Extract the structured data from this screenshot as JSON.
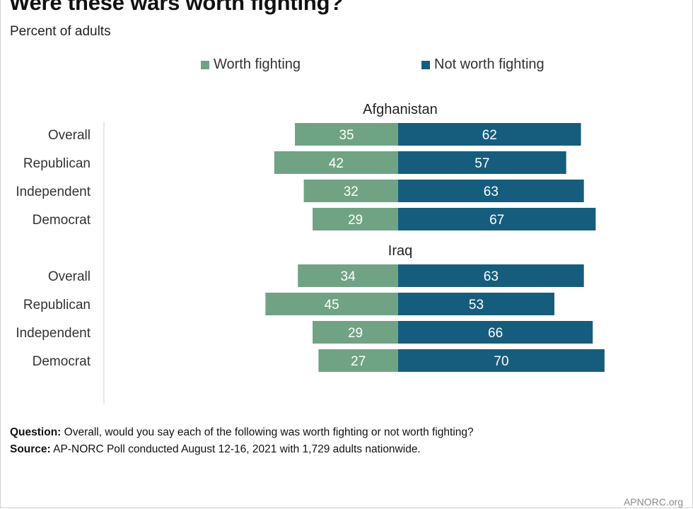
{
  "title": "Were these wars worth fighting?",
  "subtitle": "Percent of adults",
  "footer": {
    "question_label": "Question:",
    "question_text": "Overall, would you say each of the following was worth fighting or not worth fighting?",
    "source_label": "Source:",
    "source_text": "AP-NORC Poll conducted August 12-16, 2021 with 1,729 adults nationwide."
  },
  "credit": "APNORC.org",
  "colors": {
    "worth": "#6fa384",
    "not_worth": "#165d7d"
  },
  "chart_data": {
    "type": "bar",
    "orientation": "horizontal-diverging",
    "legend": [
      "Worth fighting",
      "Not worth fighting"
    ],
    "legend_position": "top-center",
    "groups": [
      {
        "name": "Afghanistan",
        "categories": [
          "Overall",
          "Republican",
          "Independent",
          "Democrat"
        ],
        "series": [
          {
            "name": "Worth fighting",
            "values": [
              35,
              42,
              32,
              29
            ]
          },
          {
            "name": "Not worth fighting",
            "values": [
              62,
              57,
              63,
              67
            ]
          }
        ]
      },
      {
        "name": "Iraq",
        "categories": [
          "Overall",
          "Republican",
          "Independent",
          "Democrat"
        ],
        "series": [
          {
            "name": "Worth fighting",
            "values": [
              34,
              45,
              29,
              27
            ]
          },
          {
            "name": "Not worth fighting",
            "values": [
              63,
              53,
              66,
              70
            ]
          }
        ]
      }
    ],
    "xlabel": "",
    "ylabel": "",
    "grid": false
  }
}
